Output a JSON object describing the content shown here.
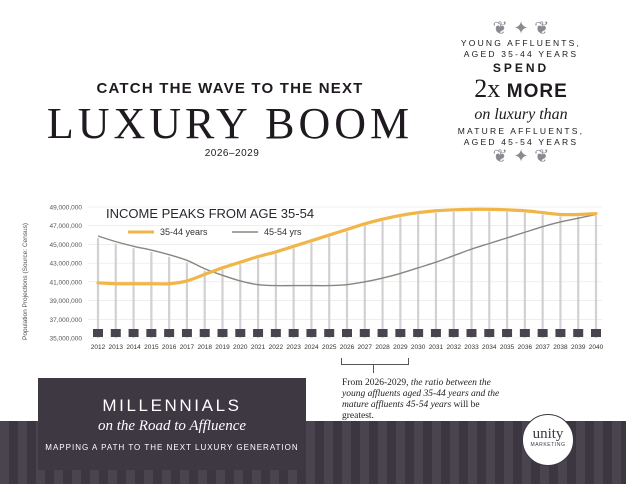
{
  "headline": {
    "small": "CATCH THE WAVE TO THE NEXT",
    "big": "LUXURY BOOM",
    "years": "2026–2029"
  },
  "callout": {
    "line1": "YOUNG AFFLUENTS,",
    "line2": "AGED 35-44 YEARS",
    "spend": "SPEND",
    "multiplier": "2x",
    "more": "MORE",
    "italic": "on luxury than",
    "line3": "MATURE AFFLUENTS,",
    "line4": "AGED 45-54 YEARS"
  },
  "note": {
    "text1": "From 2026-2029, ",
    "italic": "the ratio between the young affluents aged 35-44 years and  the mature affluents 45-54 years",
    "text2": " will be greatest."
  },
  "banner": {
    "title": "MILLENNIALS",
    "subtitle": "on the Road to Affluence",
    "tagline": "MAPPING A PATH TO THE NEXT LUXURY GENERATION"
  },
  "logo": {
    "name": "unity",
    "sub": "MARKETING"
  },
  "chart_data": {
    "type": "line",
    "title": "INCOME PEAKS FROM AGE 35-54",
    "ylabel": "Population Projections (Source: Census)",
    "xlabel": "",
    "ylim": [
      35000000,
      49000000
    ],
    "yticks": [
      35000000,
      37000000,
      39000000,
      41000000,
      43000000,
      45000000,
      47000000,
      49000000
    ],
    "ytick_labels": [
      "35,000,000",
      "37,000,000",
      "39,000,000",
      "41,000,000",
      "43,000,000",
      "45,000,000",
      "47,000,000",
      "49,000,000"
    ],
    "x": [
      "2012",
      "2013",
      "2014",
      "2015",
      "2016",
      "2017",
      "2018",
      "2019",
      "2020",
      "2021",
      "2022",
      "2023",
      "2024",
      "2025",
      "2026",
      "2027",
      "2028",
      "2029",
      "2030",
      "2031",
      "2032",
      "2033",
      "2034",
      "2035",
      "2036",
      "2037",
      "2038",
      "2039",
      "2040"
    ],
    "legend_position": "top-left",
    "grid": true,
    "series": [
      {
        "name": "35-44 years",
        "color": "#f0b64a",
        "values": [
          40900000,
          40800000,
          40800000,
          40800000,
          40800000,
          41100000,
          41800000,
          42500000,
          43100000,
          43700000,
          44200000,
          44800000,
          45400000,
          46000000,
          46600000,
          47200000,
          47700000,
          48100000,
          48400000,
          48600000,
          48700000,
          48750000,
          48750000,
          48700000,
          48600000,
          48400000,
          48200000,
          48200000,
          48300000
        ]
      },
      {
        "name": "45-54 yrs",
        "color": "#8a867e",
        "values": [
          45900000,
          45300000,
          44800000,
          44400000,
          43900000,
          43300000,
          42400000,
          41700000,
          41100000,
          40700000,
          40600000,
          40600000,
          40600000,
          40600000,
          40700000,
          41000000,
          41400000,
          41900000,
          42500000,
          43100000,
          43800000,
          44500000,
          45100000,
          45700000,
          46300000,
          46900000,
          47400000,
          47800000,
          48200000
        ]
      }
    ]
  }
}
